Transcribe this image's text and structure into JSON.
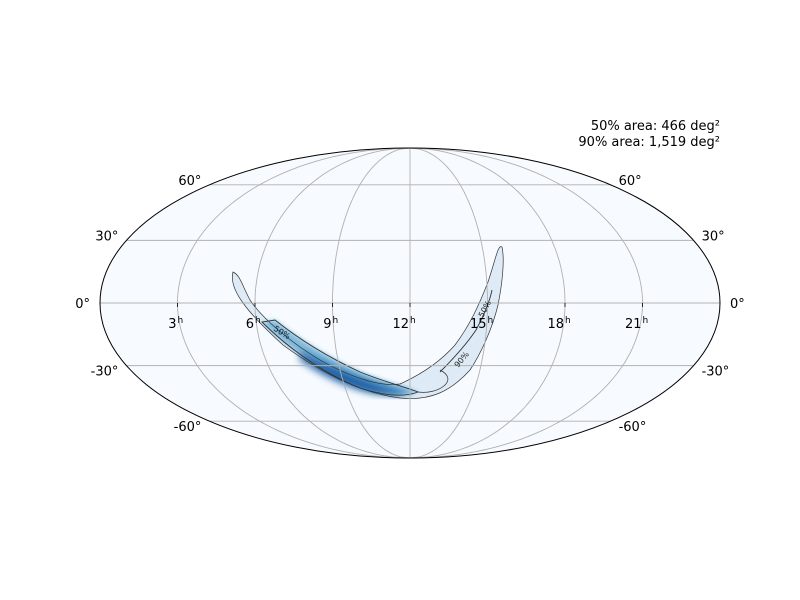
{
  "figure": {
    "projection": "mollweide",
    "colormap": "Blues",
    "grid": true,
    "colors": {
      "background": "#f7fbff",
      "grid": "#b0b0b0",
      "outline": "#000000",
      "contour": "#333333",
      "prob_low": "#deebf7",
      "prob_mid": "#6baed6",
      "prob_high": "#08519c"
    }
  },
  "annotations": {
    "area_50": "50% area: 466 deg²",
    "area_90": "90% area: 1,519 deg²"
  },
  "ra_ticks": [
    {
      "hours": 21,
      "label": "21"
    },
    {
      "hours": 18,
      "label": "18"
    },
    {
      "hours": 15,
      "label": "15"
    },
    {
      "hours": 12,
      "label": "12"
    },
    {
      "hours": 9,
      "label": "9"
    },
    {
      "hours": 6,
      "label": "6"
    },
    {
      "hours": 3,
      "label": "3"
    }
  ],
  "ra_unit": "h",
  "dec_ticks": [
    {
      "deg": 60,
      "label": "60°"
    },
    {
      "deg": 30,
      "label": "30°"
    },
    {
      "deg": 0,
      "label": "0°"
    },
    {
      "deg": -30,
      "label": "-30°"
    },
    {
      "deg": -60,
      "label": "-60°"
    }
  ],
  "contours": [
    {
      "level": 50,
      "label": "50%"
    },
    {
      "level": 90,
      "label": "90%"
    }
  ]
}
